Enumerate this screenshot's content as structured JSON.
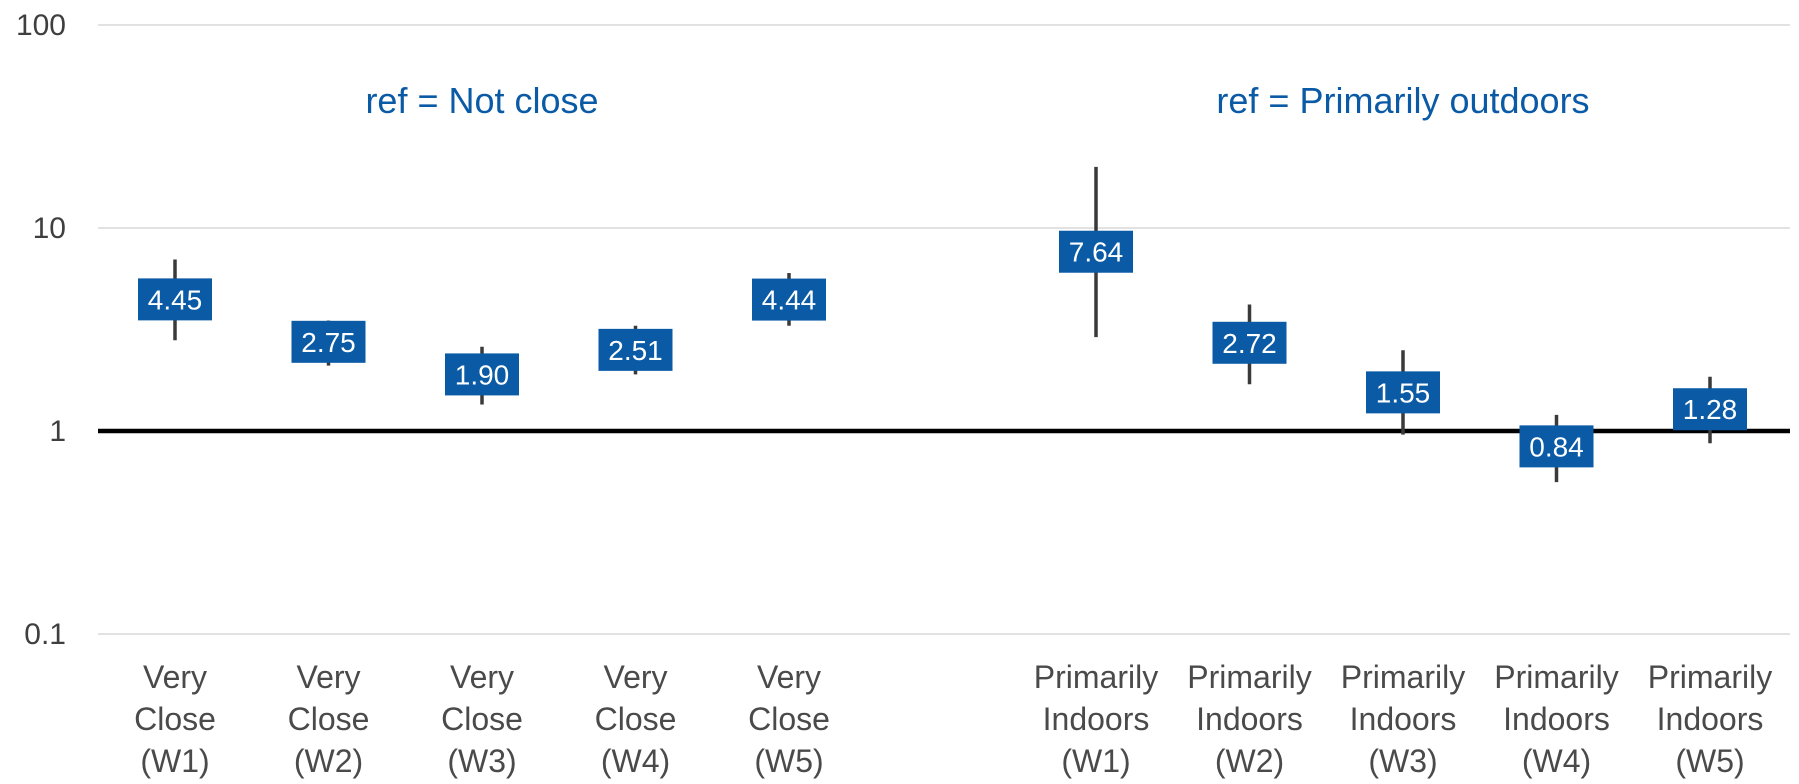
{
  "chart_data": {
    "type": "scatter",
    "title": "",
    "xlabel": "",
    "ylabel": "",
    "y_scale": "log",
    "ylim": [
      0.1,
      100
    ],
    "y_ticks": [
      {
        "value": 0.1,
        "label": "0.1"
      },
      {
        "value": 1,
        "label": "1"
      },
      {
        "value": 10,
        "label": "10"
      },
      {
        "value": 100,
        "label": "100"
      }
    ],
    "grid": true,
    "reference_line": 1,
    "annotations": [
      {
        "text": "ref = Not close",
        "group": 0
      },
      {
        "text": "ref = Primarily outdoors",
        "group": 1
      }
    ],
    "categories": [
      {
        "lines": [
          "Very",
          "Close",
          "(W1)"
        ],
        "group": 0
      },
      {
        "lines": [
          "Very",
          "Close",
          "(W2)"
        ],
        "group": 0
      },
      {
        "lines": [
          "Very",
          "Close",
          "(W3)"
        ],
        "group": 0
      },
      {
        "lines": [
          "Very",
          "Close",
          "(W4)"
        ],
        "group": 0
      },
      {
        "lines": [
          "Very",
          "Close",
          "(W5)"
        ],
        "group": 0
      },
      {
        "lines": [
          "Primarily",
          "Indoors",
          "(W1)"
        ],
        "group": 1
      },
      {
        "lines": [
          "Primarily",
          "Indoors",
          "(W2)"
        ],
        "group": 1
      },
      {
        "lines": [
          "Primarily",
          "Indoors",
          "(W3)"
        ],
        "group": 1
      },
      {
        "lines": [
          "Primarily",
          "Indoors",
          "(W4)"
        ],
        "group": 1
      },
      {
        "lines": [
          "Primarily",
          "Indoors",
          "(W5)"
        ],
        "group": 1
      }
    ],
    "points": [
      {
        "value": 4.45,
        "label": "4.45",
        "lower": 2.8,
        "upper": 7.0
      },
      {
        "value": 2.75,
        "label": "2.75",
        "lower": 2.1,
        "upper": 3.5
      },
      {
        "value": 1.9,
        "label": "1.90",
        "lower": 1.35,
        "upper": 2.6
      },
      {
        "value": 2.51,
        "label": "2.51",
        "lower": 1.9,
        "upper": 3.3
      },
      {
        "value": 4.44,
        "label": "4.44",
        "lower": 3.3,
        "upper": 6.0
      },
      {
        "value": 7.64,
        "label": "7.64",
        "lower": 2.9,
        "upper": 20.0
      },
      {
        "value": 2.72,
        "label": "2.72",
        "lower": 1.7,
        "upper": 4.2
      },
      {
        "value": 1.55,
        "label": "1.55",
        "lower": 0.96,
        "upper": 2.5
      },
      {
        "value": 0.84,
        "label": "0.84",
        "lower": 0.56,
        "upper": 1.2
      },
      {
        "value": 1.28,
        "label": "1.28",
        "lower": 0.87,
        "upper": 1.85
      }
    ],
    "colors": {
      "box": "#0a5aa6",
      "box_text": "#ffffff",
      "error_bar": "#3a3a3a",
      "reference_line": "#000000",
      "grid": "#d9d9d9",
      "annotation": "#0a5aa6",
      "axis_text": "#3f3f3f",
      "category_text": "#4a4a4a"
    }
  }
}
